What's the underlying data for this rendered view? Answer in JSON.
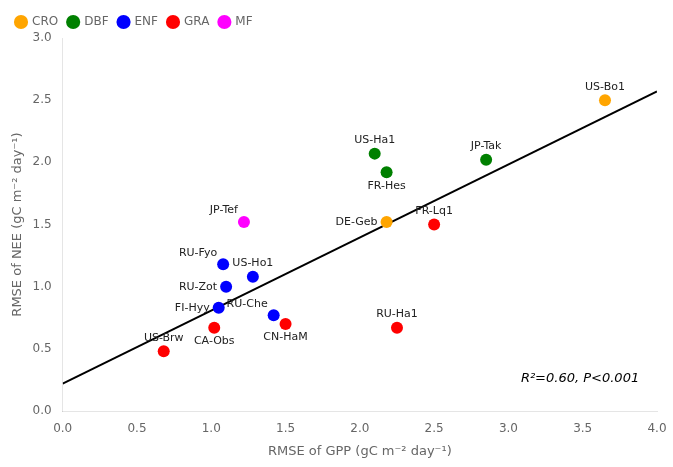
{
  "chart_data": {
    "type": "scatter",
    "xlabel": "RMSE of GPP (gC m⁻² day⁻¹)",
    "ylabel": "RMSE of NEE (gC m⁻² day⁻¹)",
    "annotation": "R²=0.60, P<0.001",
    "series": [
      {
        "name": "CRO",
        "color": "#FFA500",
        "x": [
          3.65,
          2.18
        ],
        "y": [
          2.5,
          1.52
        ],
        "labels": [
          "US-Bo1",
          "DE-Geb"
        ]
      },
      {
        "name": "DBF",
        "color": "#008000",
        "x": [
          2.1,
          2.18,
          2.85
        ],
        "y": [
          2.07,
          1.92,
          2.02
        ],
        "labels": [
          "US-Ha1",
          "FR-Hes",
          "JP-Tak"
        ]
      },
      {
        "name": "ENF",
        "color": "#0000FF",
        "x": [
          1.08,
          1.28,
          1.1,
          1.05,
          1.42
        ],
        "y": [
          1.18,
          1.08,
          1.0,
          0.83,
          0.77
        ],
        "labels": [
          "RU-Fyo",
          "US-Ho1",
          "RU-Zot",
          "FI-Hyy",
          "RU-Che"
        ]
      },
      {
        "name": "GRA",
        "color": "#FF0000",
        "x": [
          0.68,
          1.02,
          2.5,
          1.5,
          2.25
        ],
        "y": [
          0.48,
          0.67,
          1.5,
          0.7,
          0.67
        ],
        "labels": [
          "US-Brw",
          "CA-Obs",
          "FR-Lq1",
          "CN-HaM",
          "RU-Ha1"
        ]
      },
      {
        "name": "MF",
        "color": "#FF00FF",
        "x": [
          1.22
        ],
        "y": [
          1.52
        ],
        "labels": [
          "JP-Tef"
        ]
      }
    ],
    "regression_line": {
      "x": [
        0.0,
        4.0
      ],
      "y": [
        0.22,
        2.57
      ],
      "color": "#000000"
    },
    "xlim": [
      0,
      4
    ],
    "ylim": [
      0,
      3
    ],
    "xticks": [
      {
        "value": 0,
        "label": "0.0"
      },
      {
        "value": 0.5,
        "label": "0.5"
      },
      {
        "value": 1,
        "label": "1.0"
      },
      {
        "value": 1.5,
        "label": "1.5"
      },
      {
        "value": 2,
        "label": "2.0"
      },
      {
        "value": 2.5,
        "label": "2.5"
      },
      {
        "value": 3,
        "label": "3.0"
      },
      {
        "value": 3.5,
        "label": "3.5"
      },
      {
        "value": 4,
        "label": "4.0"
      }
    ],
    "yticks": [
      {
        "value": 0,
        "label": "0.0"
      },
      {
        "value": 0.5,
        "label": "0.5"
      },
      {
        "value": 1,
        "label": "1.0"
      },
      {
        "value": 1.5,
        "label": "1.5"
      },
      {
        "value": 2,
        "label": "2.0"
      },
      {
        "value": 2.5,
        "label": "2.5"
      },
      {
        "value": 3,
        "label": "3.0"
      }
    ],
    "legend": "upper left",
    "grid": false
  }
}
